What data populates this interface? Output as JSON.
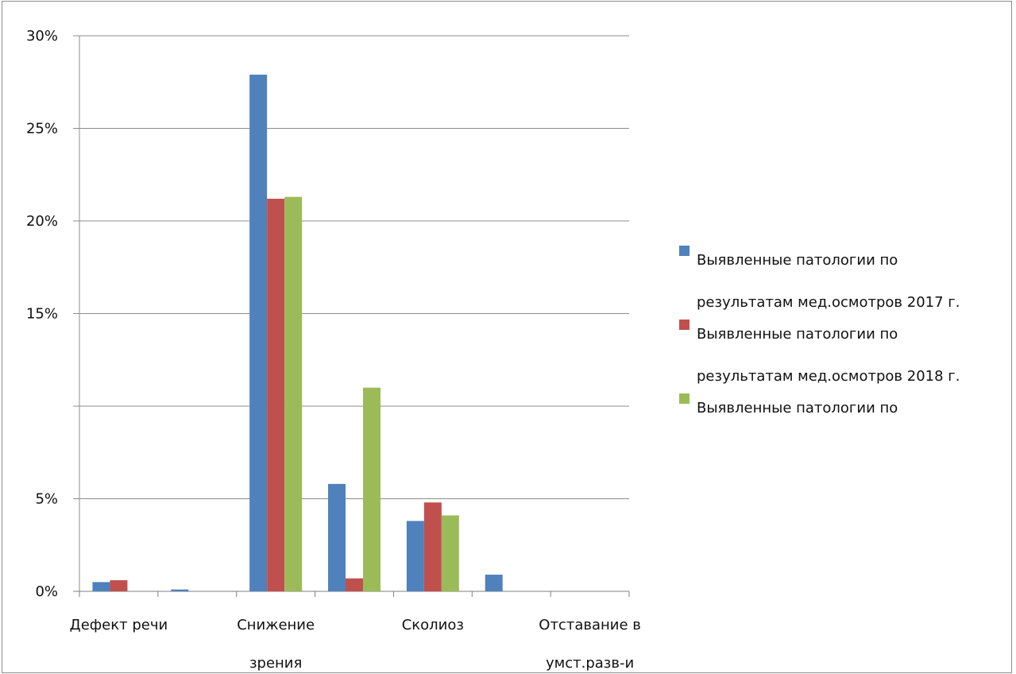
{
  "chart_data": {
    "type": "bar",
    "categories": [
      "Дефект речи",
      "",
      "Снижение зрения",
      "",
      "Сколиоз",
      "",
      "Отставание в умст.разв-и"
    ],
    "category_labels": [
      [
        "Дефект речи"
      ],
      [],
      [
        "Снижение",
        "зрения"
      ],
      [],
      [
        "Сколиоз"
      ],
      [],
      [
        "Отставание в",
        "умст.разв-и"
      ]
    ],
    "series": [
      {
        "name": "Выявленные патологии по результатам мед.осмотров 2017 г.",
        "legend_lines": [
          "Выявленные патологии по",
          "результатам мед.осмотров 2017 г."
        ],
        "color": "#4f81bd",
        "values": [
          0.5,
          0.1,
          27.9,
          5.8,
          3.8,
          0.9,
          0
        ]
      },
      {
        "name": "Выявленные патологии по результатам мед.осмотров 2018 г.",
        "legend_lines": [
          "Выявленные патологии по",
          "результатам мед.осмотров 2018 г."
        ],
        "color": "#c0504d",
        "values": [
          0.6,
          0,
          21.2,
          0.7,
          4.8,
          0,
          0
        ]
      },
      {
        "name": "Выявленные патологии по",
        "legend_lines": [
          "Выявленные патологии по"
        ],
        "color": "#9bbb59",
        "values": [
          0,
          0,
          21.3,
          11.0,
          4.1,
          0,
          0
        ]
      }
    ],
    "ylim": [
      0,
      30
    ],
    "yticks": [
      0,
      5,
      10,
      15,
      20,
      25,
      30
    ],
    "ytick_labels": [
      "0%",
      "5%",
      "",
      "15%",
      "20%",
      "25%",
      "30%"
    ],
    "grid": true,
    "legend_position": "right",
    "title": "",
    "xlabel": "",
    "ylabel": ""
  }
}
